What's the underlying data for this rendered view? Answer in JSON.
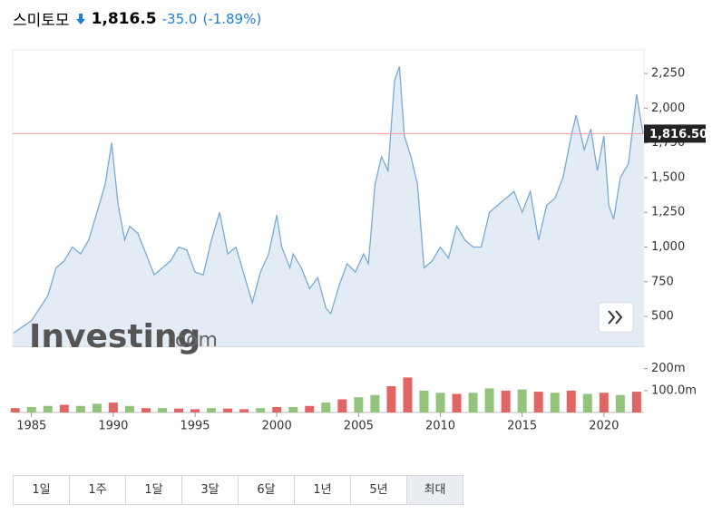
{
  "header": {
    "name": "스미토모",
    "price": "1,816.5",
    "change": "-35.0",
    "change_percent": "(-1.89%)"
  },
  "watermark": {
    "main": "Investing",
    "suffix": ".com"
  },
  "range_buttons": {
    "labels": [
      "1일",
      "1주",
      "1달",
      "3달",
      "6달",
      "1년",
      "5년",
      "최대"
    ],
    "active": 7
  },
  "chart_data": [
    {
      "type": "line",
      "color": "#7aaad4",
      "fill": "#e3ecf5",
      "x": [
        1983.9,
        1984.5,
        1985,
        1985.5,
        1986,
        1986.5,
        1987,
        1987.5,
        1988,
        1988.5,
        1989,
        1989.5,
        1989.9,
        1990.3,
        1990.7,
        1991,
        1991.5,
        1992,
        1992.5,
        1993,
        1993.5,
        1994,
        1994.5,
        1995,
        1995.5,
        1996,
        1996.5,
        1997,
        1997.5,
        1998,
        1998.5,
        1999,
        1999.5,
        2000,
        2000.3,
        2000.8,
        2001,
        2001.5,
        2002,
        2002.5,
        2003,
        2003.3,
        2003.8,
        2004.3,
        2004.8,
        2005.3,
        2005.6,
        2006,
        2006.4,
        2006.8,
        2007.2,
        2007.5,
        2007.8,
        2008.2,
        2008.6,
        2009,
        2009.5,
        2010,
        2010.5,
        2011,
        2011.5,
        2012,
        2012.5,
        2013,
        2013.5,
        2014,
        2014.5,
        2015,
        2015.5,
        2016,
        2016.5,
        2017,
        2017.5,
        2018,
        2018.3,
        2018.8,
        2019.2,
        2019.6,
        2020,
        2020.3,
        2020.6,
        2021,
        2021.5,
        2022,
        2022.2,
        2022.4
      ],
      "values": [
        380,
        430,
        470,
        560,
        650,
        850,
        900,
        1000,
        950,
        1050,
        1250,
        1450,
        1750,
        1300,
        1050,
        1150,
        1100,
        950,
        800,
        850,
        900,
        1000,
        980,
        820,
        800,
        1050,
        1250,
        950,
        1000,
        800,
        600,
        820,
        950,
        1230,
        1000,
        850,
        950,
        850,
        700,
        780,
        560,
        520,
        720,
        880,
        820,
        950,
        880,
        1450,
        1650,
        1550,
        2200,
        2300,
        1800,
        1650,
        1450,
        850,
        900,
        1000,
        920,
        1150,
        1050,
        1000,
        1000,
        1250,
        1300,
        1350,
        1400,
        1250,
        1400,
        1050,
        1300,
        1350,
        1500,
        1800,
        1950,
        1700,
        1850,
        1550,
        1800,
        1300,
        1200,
        1500,
        1600,
        2100,
        1950,
        1816.5
      ],
      "xlim": [
        1983.85,
        2022.45
      ],
      "ylim": [
        285,
        2420
      ],
      "yticks": [
        500,
        750,
        {
          "value": 1000,
          "label": "1,000"
        },
        {
          "value": 1250,
          "label": "1,250"
        },
        {
          "value": 1500,
          "label": "1,500"
        },
        {
          "value": 1750,
          "label": "1,750"
        },
        {
          "value": 2000,
          "label": "2,000"
        },
        {
          "value": 2250,
          "label": "2,250"
        }
      ],
      "reference_line": {
        "value": 1816.5,
        "label": "1,816.50",
        "color": "#f0a0a0"
      }
    },
    {
      "type": "bar",
      "x": [
        1984,
        1985,
        1986,
        1987,
        1988,
        1989,
        1990,
        1991,
        1992,
        1993,
        1994,
        1995,
        1996,
        1997,
        1998,
        1999,
        2000,
        2001,
        2002,
        2003,
        2004,
        2005,
        2006,
        2007,
        2008,
        2009,
        2010,
        2011,
        2012,
        2013,
        2014,
        2015,
        2016,
        2017,
        2018,
        2019,
        2020,
        2021,
        2022
      ],
      "values": [
        20,
        25,
        30,
        35,
        30,
        40,
        45,
        30,
        20,
        20,
        18,
        15,
        20,
        18,
        15,
        20,
        25,
        25,
        30,
        45,
        60,
        70,
        80,
        120,
        160,
        100,
        90,
        85,
        90,
        110,
        100,
        105,
        95,
        90,
        100,
        85,
        90,
        80,
        95
      ],
      "colors": [
        "#e06666",
        "#93c47d",
        "#93c47d",
        "#e06666",
        "#93c47d",
        "#93c47d",
        "#e06666",
        "#93c47d",
        "#e06666",
        "#93c47d",
        "#e06666",
        "#e06666",
        "#93c47d",
        "#e06666",
        "#e06666",
        "#93c47d",
        "#e06666",
        "#93c47d",
        "#e06666",
        "#93c47d",
        "#e06666",
        "#93c47d",
        "#93c47d",
        "#e06666",
        "#e06666",
        "#93c47d",
        "#93c47d",
        "#e06666",
        "#93c47d",
        "#93c47d",
        "#e06666",
        "#93c47d",
        "#e06666",
        "#93c47d",
        "#e06666",
        "#93c47d",
        "#e06666",
        "#93c47d",
        "#e06666"
      ],
      "xlim": [
        1983.85,
        2022.45
      ],
      "ylim": [
        0,
        290
      ],
      "yticks": [
        {
          "value": 100,
          "label": "100.0m"
        },
        {
          "value": 200,
          "label": "200m"
        }
      ],
      "xticks": [
        1985,
        1990,
        1995,
        2000,
        2005,
        2010,
        2015,
        2020
      ]
    }
  ]
}
